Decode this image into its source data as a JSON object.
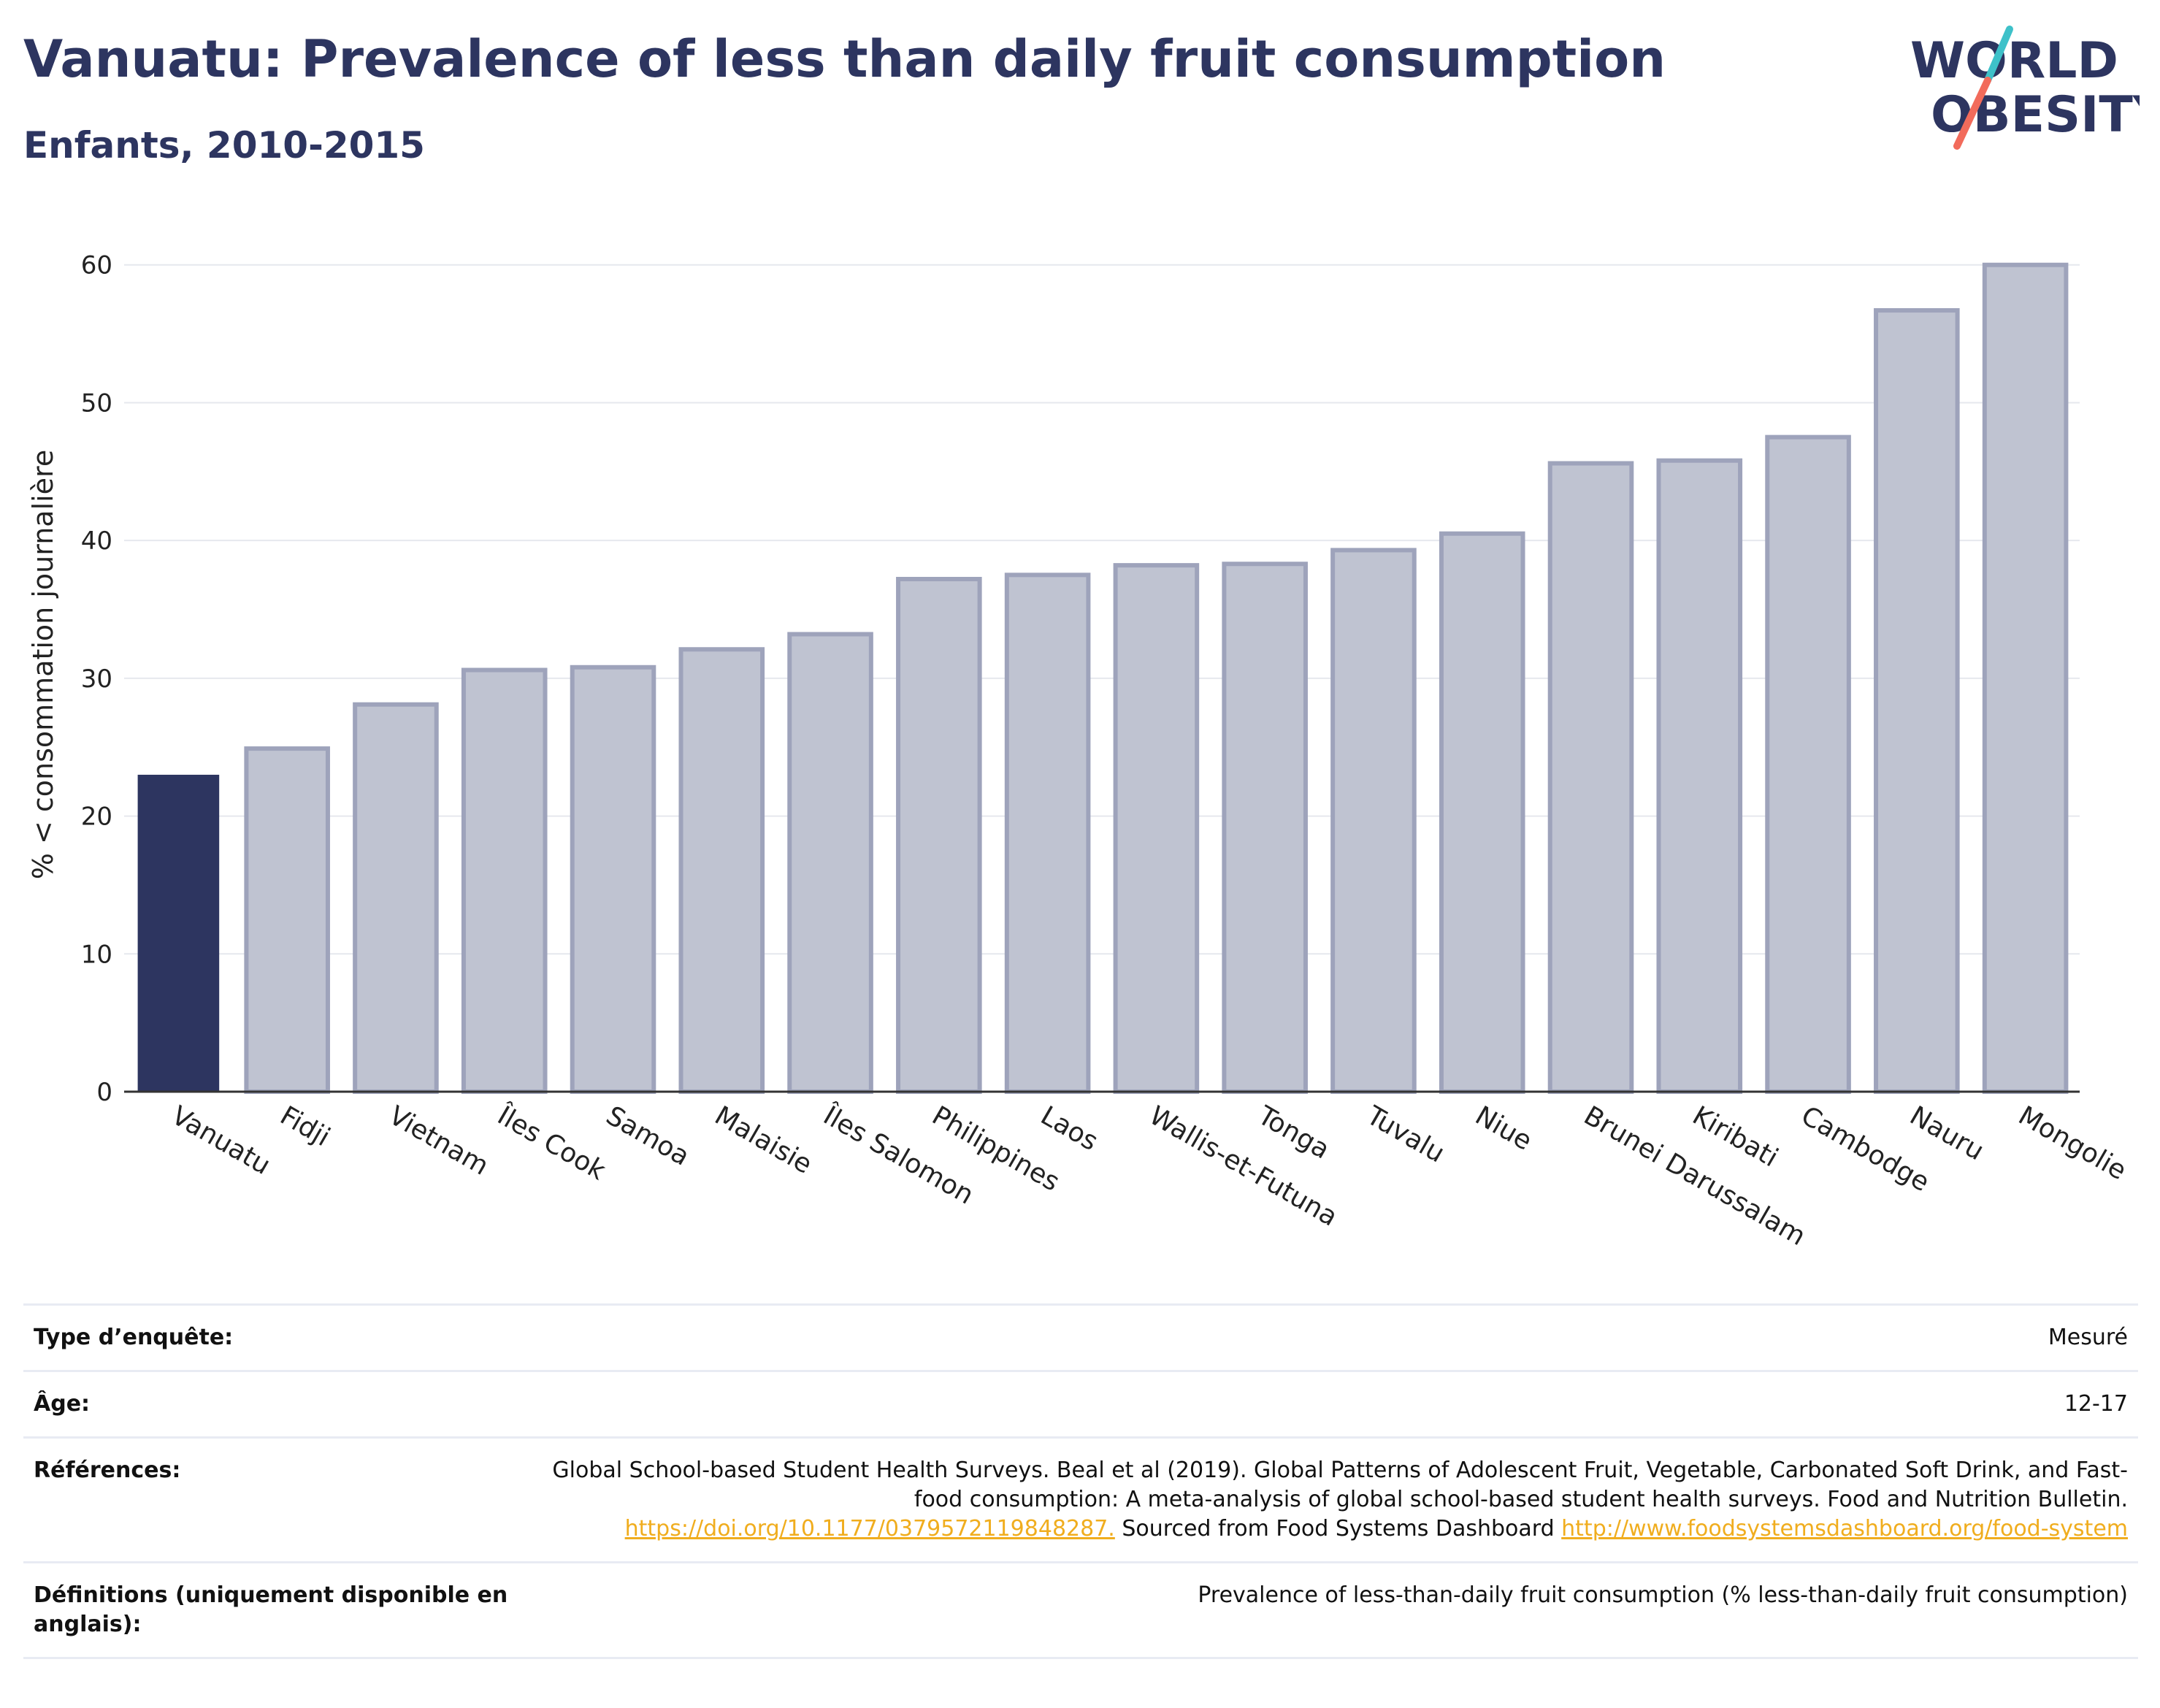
{
  "header": {
    "title": "Vanuatu: Prevalence of less than daily fruit consumption",
    "subtitle": "Enfants, 2010-2015"
  },
  "logo": {
    "line1": "WORLD",
    "line2": "OBESITY",
    "colors": [
      "#2d3560",
      "#3ec1c9",
      "#f26b5b"
    ]
  },
  "chart_data": {
    "type": "bar",
    "ylabel": "% < consommation journalière",
    "ylim": [
      0,
      62
    ],
    "yticks": [
      0,
      10,
      20,
      30,
      40,
      50,
      60
    ],
    "grid": true,
    "highlight_index": 0,
    "highlight_color": "#2d3560",
    "bar_color": "#bfc3d1",
    "bar_border_color": "#9ea3bb",
    "categories": [
      "Vanuatu",
      "Fidji",
      "Vietnam",
      "Îles Cook",
      "Samoa",
      "Malaisie",
      "Îles Salomon",
      "Philippines",
      "Laos",
      "Wallis-et-Futuna",
      "Tonga",
      "Tuvalu",
      "Niue",
      "Brunei Darussalam",
      "Kiribati",
      "Cambodge",
      "Nauru",
      "Mongolie"
    ],
    "values": [
      23.0,
      24.9,
      28.1,
      30.6,
      30.8,
      32.1,
      33.2,
      37.2,
      37.5,
      38.2,
      38.3,
      39.3,
      40.5,
      45.6,
      45.8,
      47.5,
      56.7,
      60.0
    ]
  },
  "info": {
    "survey_type_label": "Type d’enquête:",
    "survey_type_value": "Mesuré",
    "age_label": "Âge:",
    "age_value": "12-17",
    "references_label": "Références:",
    "references_text1": "Global School-based Student Health Surveys. Beal et al (2019). Global Patterns of Adolescent Fruit, Vegetable, Carbonated Soft Drink, and Fast-food consumption: A meta-analysis of global school-based student health surveys. Food and Nutrition Bulletin.",
    "references_link1": "https://doi.org/10.1177/0379572119848287.",
    "references_text2": " Sourced from Food Systems Dashboard ",
    "references_link2": "http://www.foodsystemsdashboard.org/food-system",
    "definitions_label": "Définitions (uniquement disponible en anglais):",
    "definitions_value": "Prevalence of less-than-daily fruit consumption (% less-than-daily fruit consumption)"
  }
}
